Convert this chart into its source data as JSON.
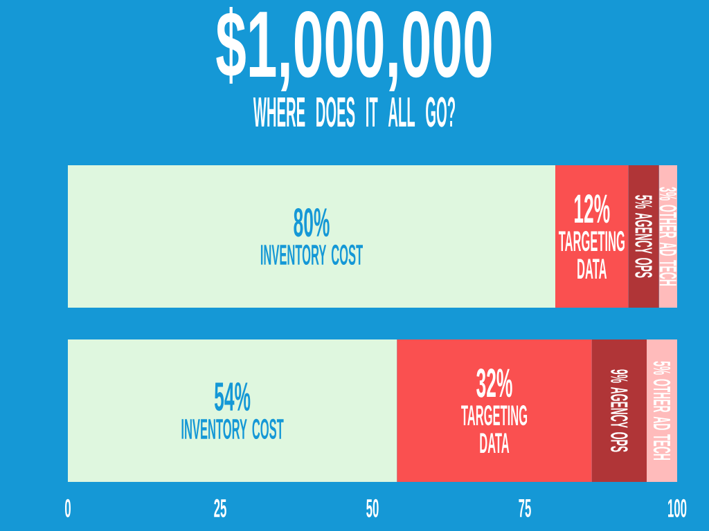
{
  "chart_data": {
    "type": "bar",
    "orientation": "horizontal",
    "stacked": true,
    "title": "$1,000,000",
    "subtitle": "WHERE DOES IT ALL GO?",
    "categories": [
      null,
      null
    ],
    "series": [
      {
        "name": "INVENTORY COST",
        "color": "#dff7df",
        "values": [
          80,
          54
        ],
        "value_labels": [
          "80%",
          "54%"
        ]
      },
      {
        "name": "TARGETING DATA",
        "color": "#fa5050",
        "values": [
          12,
          32
        ],
        "value_labels": [
          "12%",
          "32%"
        ]
      },
      {
        "name": "AGENCY OPS",
        "color": "#b03537",
        "values": [
          5,
          9
        ],
        "value_labels": [
          "5%",
          "9%"
        ]
      },
      {
        "name": "OTHER AD TECH",
        "color": "#ffbbbb",
        "values": [
          3,
          5
        ],
        "value_labels": [
          "3%",
          "5%"
        ]
      }
    ],
    "xlim": [
      0,
      100
    ],
    "xticks": [
      0,
      25,
      50,
      75,
      100
    ]
  }
}
